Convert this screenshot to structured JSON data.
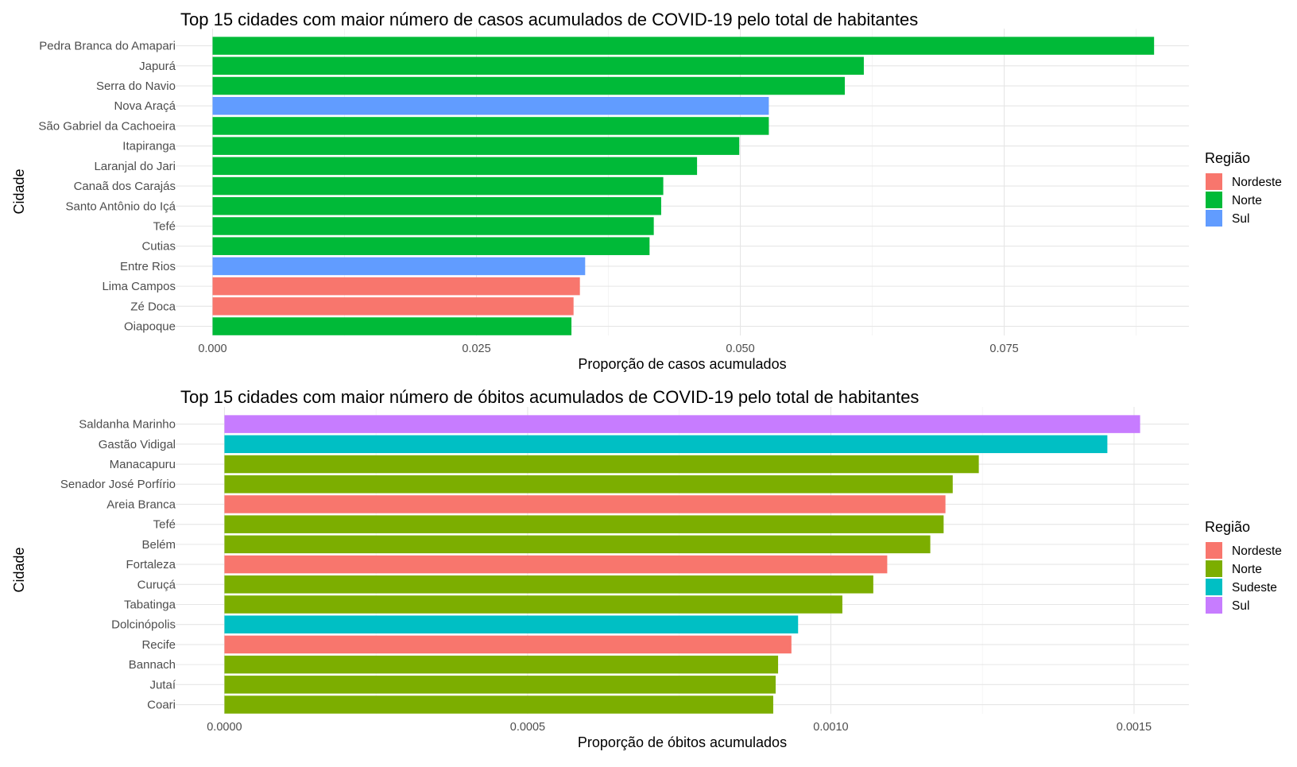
{
  "chart_data": [
    {
      "type": "bar",
      "orientation": "horizontal",
      "title": "Top 15 cidades com maior número de casos acumulados de COVID-19 pelo total de habitantes",
      "xlabel": "Proporção de casos acumulados",
      "ylabel": "Cidade",
      "xlim": [
        -0.0035,
        0.0925
      ],
      "xticks": [
        0,
        0.025,
        0.05,
        0.075
      ],
      "xtick_labels": [
        "0.000",
        "0.025",
        "0.050",
        "0.075"
      ],
      "grid": true,
      "legend_title": "Região",
      "legend_position": "right",
      "legend": [
        {
          "name": "Nordeste",
          "color": "#F8766D"
        },
        {
          "name": "Norte",
          "color": "#00BA38"
        },
        {
          "name": "Sul",
          "color": "#619CFF"
        }
      ],
      "categories": [
        "Pedra Branca do Amapari",
        "Japurá",
        "Serra do Navio",
        "Nova Araçá",
        "São Gabriel da Cachoeira",
        "Itapiranga",
        "Laranjal do Jari",
        "Canaã dos Carajás",
        "Santo Antônio do Içá",
        "Tefé",
        "Cutias",
        "Entre Rios",
        "Lima Campos",
        "Zé Doca",
        "Oiapoque"
      ],
      "values": [
        0.0892,
        0.0617,
        0.0599,
        0.0527,
        0.0527,
        0.0499,
        0.0459,
        0.0427,
        0.0425,
        0.0418,
        0.0414,
        0.0353,
        0.0348,
        0.0342,
        0.034
      ],
      "regions": [
        "Norte",
        "Norte",
        "Norte",
        "Sul",
        "Norte",
        "Norte",
        "Norte",
        "Norte",
        "Norte",
        "Norte",
        "Norte",
        "Sul",
        "Nordeste",
        "Nordeste",
        "Norte"
      ]
    },
    {
      "type": "bar",
      "orientation": "horizontal",
      "title": "Top 15 cidades com maior número de óbitos acumulados de COVID-19 pelo total de habitantes",
      "xlabel": "Proporção de óbitos acumulados",
      "ylabel": "Cidade",
      "xlim": [
        -8.05e-05,
        0.0015905
      ],
      "xticks": [
        0,
        0.0005,
        0.001,
        0.0015
      ],
      "xtick_labels": [
        "0.0000",
        "0.0005",
        "0.0010",
        "0.0015"
      ],
      "grid": true,
      "legend_title": "Região",
      "legend_position": "right",
      "legend": [
        {
          "name": "Nordeste",
          "color": "#F8766D"
        },
        {
          "name": "Norte",
          "color": "#7CAE00"
        },
        {
          "name": "Sudeste",
          "color": "#00BFC4"
        },
        {
          "name": "Sul",
          "color": "#C77CFF"
        }
      ],
      "categories": [
        "Saldanha Marinho",
        "Gastão Vidigal",
        "Manacapuru",
        "Senador José Porfírio",
        "Areia Branca",
        "Tefé",
        "Belém",
        "Fortaleza",
        "Curuçá",
        "Tabatinga",
        "Dolcinópolis",
        "Recife",
        "Bannach",
        "Jutaí",
        "Coari"
      ],
      "values": [
        0.00151,
        0.001456,
        0.001244,
        0.001201,
        0.001189,
        0.001186,
        0.001164,
        0.001093,
        0.00107,
        0.001019,
        0.000946,
        0.000935,
        0.000913,
        0.000909,
        0.000905
      ],
      "regions": [
        "Sul",
        "Sudeste",
        "Norte",
        "Norte",
        "Nordeste",
        "Norte",
        "Norte",
        "Nordeste",
        "Norte",
        "Norte",
        "Sudeste",
        "Nordeste",
        "Norte",
        "Norte",
        "Norte"
      ]
    }
  ]
}
